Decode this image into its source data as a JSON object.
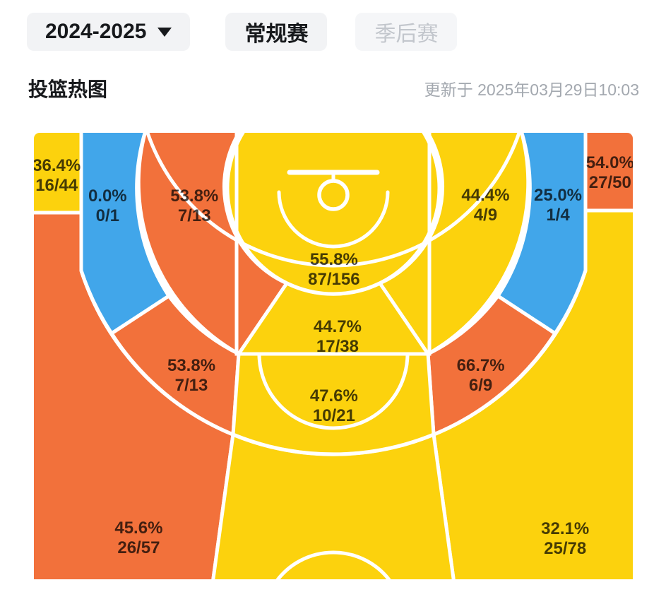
{
  "header": {
    "season_selector": {
      "label": "2024-2025",
      "icon": "caret-down"
    },
    "tabs": [
      {
        "label": "常规赛",
        "active": true
      },
      {
        "label": "季后赛",
        "active": false
      }
    ],
    "title": "投篮热图",
    "updated_at": "更新于 2025年03月29日10:03"
  },
  "chart_data": {
    "type": "heatmap",
    "title": "投篮热图",
    "legend_position": "none",
    "palette": {
      "orange": "#F2713B",
      "yellow": "#FCD20D",
      "blue": "#41A6EA",
      "line": "#FFFFFF"
    },
    "zones": [
      {
        "id": "corner3-left",
        "pct": "36.4%",
        "ratio": "16/44",
        "made": 16,
        "attempts": 44,
        "color": "yellow",
        "x": 3.8,
        "y": 9.7
      },
      {
        "id": "baseline-mid-left",
        "pct": "0.0%",
        "ratio": "0/1",
        "made": 0,
        "attempts": 1,
        "color": "blue",
        "x": 12.3,
        "y": 16.5
      },
      {
        "id": "elbow-mid-left",
        "pct": "53.8%",
        "ratio": "7/13",
        "made": 7,
        "attempts": 13,
        "color": "orange",
        "x": 26.8,
        "y": 16.5
      },
      {
        "id": "restricted-area",
        "pct": "55.8%",
        "ratio": "87/156",
        "made": 87,
        "attempts": 156,
        "color": "yellow",
        "x": 50.1,
        "y": 30.7
      },
      {
        "id": "paint-low",
        "pct": "44.7%",
        "ratio": "17/38",
        "made": 17,
        "attempts": 38,
        "color": "yellow",
        "x": 50.7,
        "y": 45.7
      },
      {
        "id": "elbow-mid-right",
        "pct": "44.4%",
        "ratio": "4/9",
        "made": 4,
        "attempts": 9,
        "color": "yellow",
        "x": 75.4,
        "y": 16.3
      },
      {
        "id": "baseline-mid-right",
        "pct": "25.0%",
        "ratio": "1/4",
        "made": 1,
        "attempts": 4,
        "color": "blue",
        "x": 87.5,
        "y": 16.3
      },
      {
        "id": "corner3-right",
        "pct": "54.0%",
        "ratio": "27/50",
        "made": 27,
        "attempts": 50,
        "color": "orange",
        "x": 96.2,
        "y": 9.0
      },
      {
        "id": "outer-mid-left",
        "pct": "53.8%",
        "ratio": "7/13",
        "made": 7,
        "attempts": 13,
        "color": "orange",
        "x": 26.3,
        "y": 54.4
      },
      {
        "id": "outer-mid-center",
        "pct": "47.6%",
        "ratio": "10/21",
        "made": 10,
        "attempts": 21,
        "color": "yellow",
        "x": 50.1,
        "y": 61.2
      },
      {
        "id": "outer-mid-right",
        "pct": "66.7%",
        "ratio": "6/9",
        "made": 6,
        "attempts": 9,
        "color": "orange",
        "x": 74.6,
        "y": 54.4
      },
      {
        "id": "wing3-left",
        "pct": "45.6%",
        "ratio": "26/57",
        "made": 26,
        "attempts": 57,
        "color": "orange",
        "x": 17.5,
        "y": 90.8
      },
      {
        "id": "wing3-right",
        "pct": "32.1%",
        "ratio": "25/78",
        "made": 25,
        "attempts": 78,
        "color": "yellow",
        "x": 88.7,
        "y": 91.0
      },
      {
        "id": "center3",
        "pct": "",
        "ratio": "",
        "made": null,
        "attempts": null,
        "color": "yellow",
        "x": 50,
        "y": 80
      }
    ]
  }
}
